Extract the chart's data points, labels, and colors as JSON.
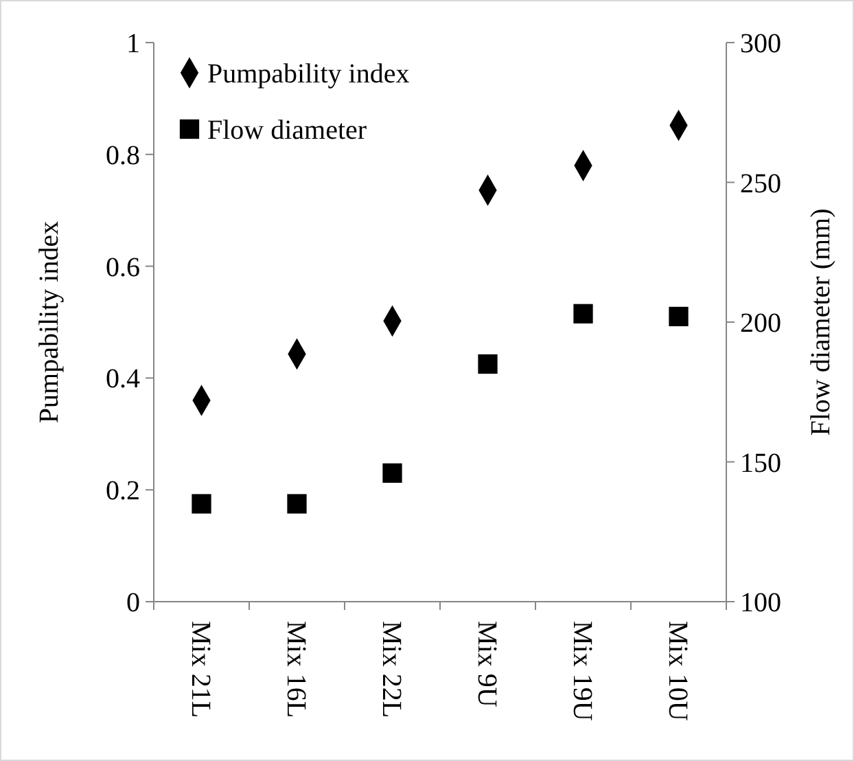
{
  "chart_data": {
    "type": "scatter",
    "categories": [
      "Mix 21L",
      "Mix 16L",
      "Mix 22L",
      "Mix 9U",
      "Mix 19U",
      "Mix 10U"
    ],
    "ylabel": "Pumpability index",
    "y2label": "Flow diameter (mm)",
    "ylim": [
      0,
      1
    ],
    "yticks": [
      0,
      0.2,
      0.4,
      0.6,
      0.8,
      1
    ],
    "y2lim": [
      100,
      300
    ],
    "y2ticks": [
      100,
      150,
      200,
      250,
      300
    ],
    "legend": "top left",
    "grid": false,
    "series": [
      {
        "name": "Pumpability index",
        "color": "#000000",
        "marker": "diamond",
        "values": [
          0.36,
          0.443,
          0.502,
          0.736,
          0.78,
          0.852
        ]
      },
      {
        "name": "Flow diameter",
        "color": "#000000",
        "marker": "square",
        "axis": "y2",
        "values": [
          135,
          135,
          146,
          185,
          203,
          202
        ]
      }
    ]
  }
}
